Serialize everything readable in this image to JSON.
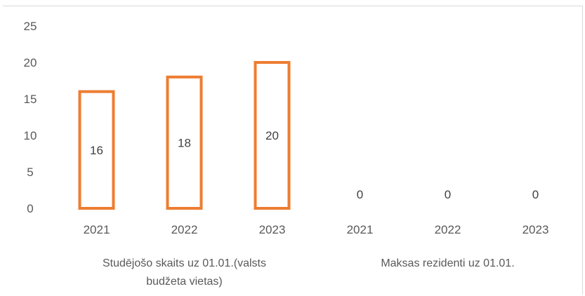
{
  "chart_data": {
    "type": "bar",
    "title": "",
    "xlabel": "",
    "ylabel": "",
    "ylim": [
      0,
      25
    ],
    "yticks": [
      0,
      5,
      10,
      15,
      20,
      25
    ],
    "grid": false,
    "legend": "none",
    "bar_color": "#ed7d31",
    "bar_fill": "#ffffff",
    "groups": [
      {
        "name": "Studējošo skaits uz 01.01.(valsts budžeta vietas)",
        "label_lines": [
          "Studējošo skaits uz 01.01.(valsts",
          "budžeta vietas)"
        ],
        "categories": [
          "2021",
          "2022",
          "2023"
        ],
        "values": [
          16,
          18,
          20
        ]
      },
      {
        "name": "Maksas rezidenti uz 01.01.",
        "label_lines": [
          "Maksas rezidenti uz 01.01."
        ],
        "categories": [
          "2021",
          "2022",
          "2023"
        ],
        "values": [
          0,
          0,
          0
        ]
      }
    ]
  }
}
